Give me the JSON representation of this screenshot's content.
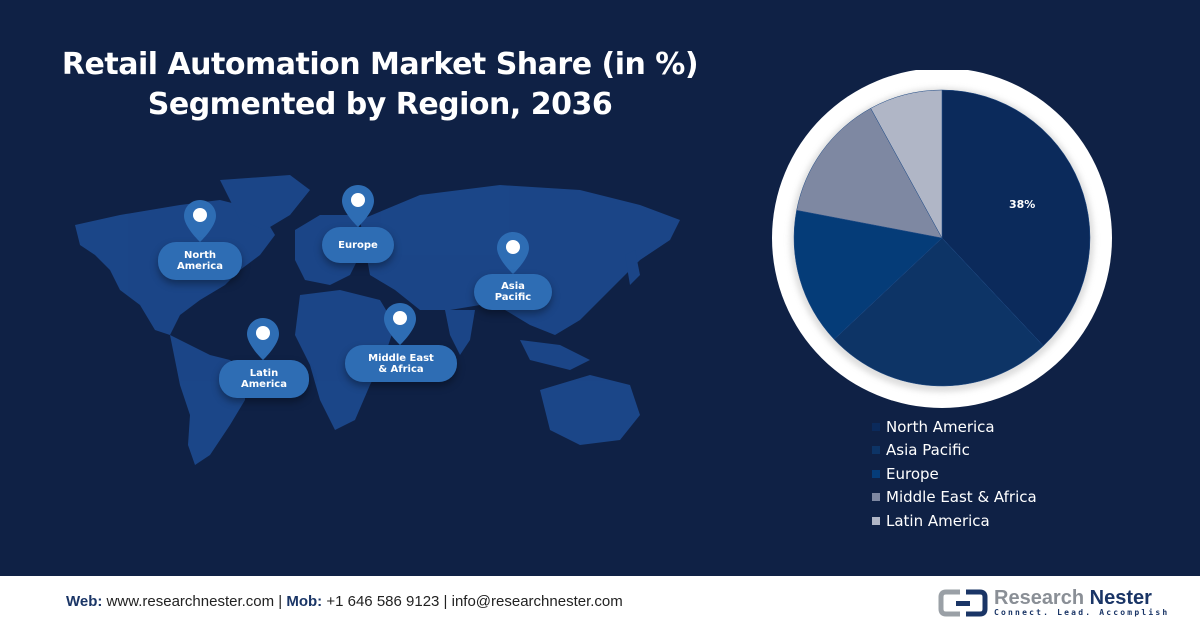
{
  "title": {
    "line1": "Retail Automation Market Share (in %)",
    "line2": "Segmented by Region, 2036"
  },
  "map": {
    "regions": [
      {
        "name": "North America",
        "line1": "North",
        "line2": "America"
      },
      {
        "name": "Europe",
        "line1": "Europe",
        "line2": ""
      },
      {
        "name": "Asia Pacific",
        "line1": "Asia",
        "line2": "Pacific"
      },
      {
        "name": "Latin America",
        "line1": "Latin",
        "line2": "America"
      },
      {
        "name": "Middle East & Africa",
        "line1": "Middle East",
        "line2": "& Africa"
      }
    ],
    "icons": {
      "pin": "map-pin-icon"
    }
  },
  "chart_data": {
    "type": "pie",
    "title": "Retail Automation Market Share (in %) Segmented by Region, 2036",
    "categories": [
      "North America",
      "Asia Pacific",
      "Europe",
      "Middle East & Africa",
      "Latin America"
    ],
    "values": [
      38,
      25,
      15,
      14,
      8
    ],
    "colors": [
      "#0b2a5b",
      "#0d3466",
      "#053c78",
      "#7e88a2",
      "#b0b6c6"
    ],
    "data_labels": [
      {
        "category": "North America",
        "text": "38%"
      }
    ],
    "legend_position": "bottom"
  },
  "legend": {
    "items": [
      {
        "label": "North America",
        "color": "#0b2a5b"
      },
      {
        "label": "Asia Pacific",
        "color": "#0d3466"
      },
      {
        "label": "Europe",
        "color": "#053c78"
      },
      {
        "label": "Middle East & Africa",
        "color": "#7e88a2"
      },
      {
        "label": "Latin America",
        "color": "#b0b6c6"
      }
    ]
  },
  "footer": {
    "web_label": "Web:",
    "web_value": " www.researchnester.com | ",
    "mob_label": "Mob:",
    "mob_value": " +1 646 586 9123 | info@researchnester.com",
    "logo_name_part1": "Research ",
    "logo_name_part2": "Nester",
    "logo_tagline": "Connect. Lead. Accomplish"
  }
}
